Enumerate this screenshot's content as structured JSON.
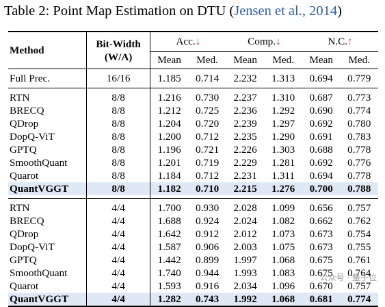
{
  "caption": {
    "prefix": "Table 2: Point Map Estimation on DTU (",
    "citation": "Jensen et al., 2014",
    "suffix": ")"
  },
  "header": {
    "method": "Method",
    "bitwidth_line1": "Bit-Width",
    "bitwidth_line2": "(W/A)",
    "acc": "Acc.",
    "comp": "Comp.",
    "nc": "N.C.",
    "down_arrow": "↓",
    "up_arrow": "↑",
    "mean": "Mean",
    "med": "Med."
  },
  "full_prec": [
    "Full Prec.",
    "16/16",
    "1.185",
    "0.714",
    "2.232",
    "1.313",
    "0.694",
    "0.779"
  ],
  "group_8bit": [
    [
      "RTN",
      "8/8",
      "1.216",
      "0.730",
      "2.237",
      "1.310",
      "0.687",
      "0.773"
    ],
    [
      "BRECQ",
      "8/8",
      "1.212",
      "0.725",
      "2.236",
      "1.292",
      "0.690",
      "0.774"
    ],
    [
      "QDrop",
      "8/8",
      "1.204",
      "0.720",
      "2.239",
      "1.297",
      "0.692",
      "0.780"
    ],
    [
      "DopQ-ViT",
      "8/8",
      "1.200",
      "0.712",
      "2.235",
      "1.290",
      "0.691",
      "0.783"
    ],
    [
      "GPTQ",
      "8/8",
      "1.196",
      "0.721",
      "2.226",
      "1.303",
      "0.688",
      "0.778"
    ],
    [
      "SmoothQuant",
      "8/8",
      "1.201",
      "0.719",
      "2.229",
      "1.281",
      "0.692",
      "0.776"
    ],
    [
      "Quarot",
      "8/8",
      "1.184",
      "0.712",
      "2.231",
      "1.311",
      "0.694",
      "0.778"
    ]
  ],
  "ours_8bit": [
    "QuantVGGT",
    "8/8",
    "1.182",
    "0.710",
    "2.215",
    "1.276",
    "0.700",
    "0.788"
  ],
  "group_4bit": [
    [
      "RTN",
      "4/4",
      "1.700",
      "0.930",
      "2.028",
      "1.099",
      "0.656",
      "0.757"
    ],
    [
      "BRECQ",
      "4/4",
      "1.688",
      "0.924",
      "2.024",
      "1.082",
      "0.662",
      "0.762"
    ],
    [
      "QDrop",
      "4/4",
      "1.642",
      "0.912",
      "2.012",
      "1.073",
      "0.673",
      "0.754"
    ],
    [
      "DopQ-ViT",
      "4/4",
      "1.587",
      "0.906",
      "2.003",
      "1.075",
      "0.673",
      "0.755"
    ],
    [
      "GPTQ",
      "4/4",
      "1.442",
      "0.899",
      "1.997",
      "1.068",
      "0.675",
      "0.761"
    ],
    [
      "SmoothQuant",
      "4/4",
      "1.740",
      "0.944",
      "1.993",
      "1.083",
      "0.675",
      "0.764"
    ],
    [
      "Quarot",
      "4/4",
      "1.593",
      "0.916",
      "2.034",
      "1.096",
      "0.670",
      "0.757"
    ]
  ],
  "ours_4bit": [
    "QuantVGGT",
    "4/4",
    "1.282",
    "0.743",
    "1.992",
    "1.068",
    "0.681",
    "0.774"
  ],
  "watermark": "公众号 · 量子位",
  "colors": {
    "highlight": "#dfe9f6",
    "citation": "#2f5da8",
    "arrow": "#e0302b"
  }
}
